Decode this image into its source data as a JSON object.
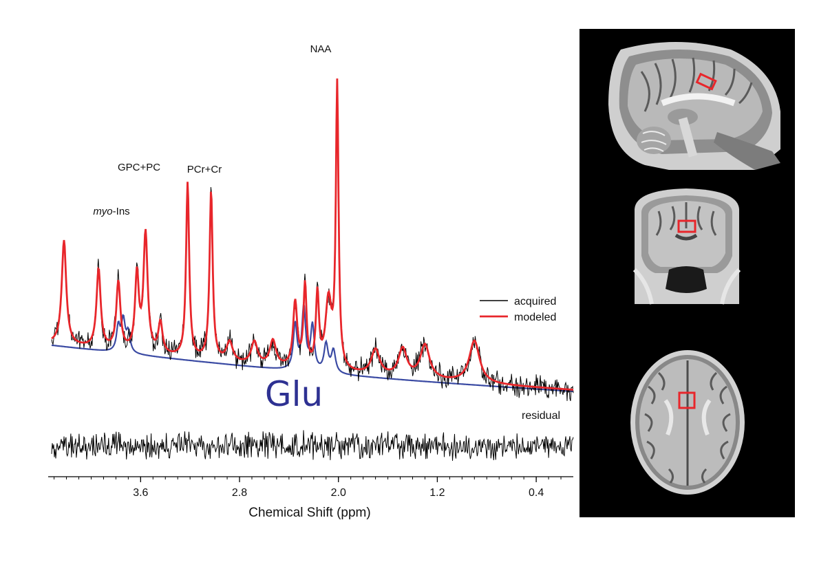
{
  "chart_data": {
    "type": "line",
    "xlabel": "Chemical Shift (ppm)",
    "ylabel": "",
    "xlim": [
      4.32,
      0.1
    ],
    "x_reversed": true,
    "xticks": [
      3.6,
      2.8,
      2.0,
      1.2,
      0.4
    ],
    "xtick_labels": [
      "3.6",
      "2.8",
      "2.0",
      "1.2",
      "0.4"
    ],
    "grid": false,
    "legend_placement": "right",
    "series": [
      {
        "name": "acquired",
        "color": "#000000"
      },
      {
        "name": "modeled",
        "color": "#e8262b"
      }
    ],
    "component_label": {
      "text": "Glu",
      "color": "#2e3192"
    },
    "residual_label": "residual",
    "peak_labels": [
      {
        "text": "NAA",
        "ppm": 2.01
      },
      {
        "text": "PCr+Cr",
        "ppm": 3.03
      },
      {
        "text": "GPC+PC",
        "ppm": 3.22
      },
      {
        "prefix": "myo",
        "suffix": "-Ins",
        "ppm": 3.56
      }
    ],
    "peaks": [
      {
        "ppm": 4.22,
        "height": 0.37,
        "width": 0.022
      },
      {
        "ppm": 3.94,
        "height": 0.28,
        "width": 0.02
      },
      {
        "ppm": 3.78,
        "height": 0.24,
        "width": 0.02
      },
      {
        "ppm": 3.63,
        "height": 0.27,
        "width": 0.018
      },
      {
        "ppm": 3.56,
        "height": 0.42,
        "width": 0.02
      },
      {
        "ppm": 3.44,
        "height": 0.11,
        "width": 0.02
      },
      {
        "ppm": 3.22,
        "height": 0.62,
        "width": 0.015
      },
      {
        "ppm": 3.03,
        "height": 0.6,
        "width": 0.015
      },
      {
        "ppm": 2.88,
        "height": 0.07,
        "width": 0.03
      },
      {
        "ppm": 2.68,
        "height": 0.08,
        "width": 0.03
      },
      {
        "ppm": 2.53,
        "height": 0.09,
        "width": 0.03
      },
      {
        "ppm": 2.35,
        "height": 0.23,
        "width": 0.02
      },
      {
        "ppm": 2.27,
        "height": 0.29,
        "width": 0.015
      },
      {
        "ppm": 2.17,
        "height": 0.26,
        "width": 0.015
      },
      {
        "ppm": 2.08,
        "height": 0.24,
        "width": 0.03
      },
      {
        "ppm": 2.01,
        "height": 1.0,
        "width": 0.013
      },
      {
        "ppm": 1.7,
        "height": 0.09,
        "width": 0.04
      },
      {
        "ppm": 1.48,
        "height": 0.1,
        "width": 0.04
      },
      {
        "ppm": 1.3,
        "height": 0.12,
        "width": 0.045
      },
      {
        "ppm": 0.9,
        "height": 0.15,
        "width": 0.05
      }
    ],
    "glu_peaks": [
      {
        "ppm": 3.78,
        "height": 0.09,
        "width": 0.018
      },
      {
        "ppm": 3.74,
        "height": 0.11,
        "width": 0.018
      },
      {
        "ppm": 3.7,
        "height": 0.07,
        "width": 0.018
      },
      {
        "ppm": 2.35,
        "height": 0.16,
        "width": 0.018
      },
      {
        "ppm": 2.28,
        "height": 0.22,
        "width": 0.018
      },
      {
        "ppm": 2.21,
        "height": 0.16,
        "width": 0.018
      },
      {
        "ppm": 2.1,
        "height": 0.1,
        "width": 0.02
      },
      {
        "ppm": 2.04,
        "height": 0.08,
        "width": 0.02
      }
    ]
  },
  "mri_panel": {
    "views": [
      {
        "plane": "sagittal"
      },
      {
        "plane": "coronal"
      },
      {
        "plane": "axial"
      }
    ],
    "voxel_color": "#e8262b"
  }
}
